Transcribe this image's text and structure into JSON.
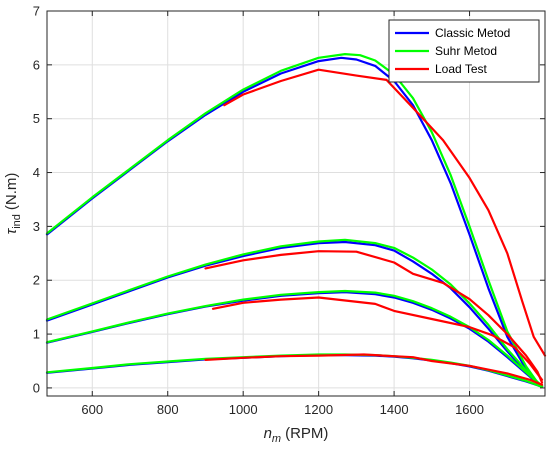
{
  "chart_data": {
    "type": "line",
    "title": "",
    "xlabel": {
      "main": "n",
      "sub": "m",
      "unit": "(RPM)"
    },
    "ylabel": {
      "main": "τ",
      "sub": "ind",
      "unit": "(N.m)"
    },
    "xlim": [
      480,
      1800
    ],
    "ylim": [
      -0.15,
      7
    ],
    "x_ticks": [
      600,
      800,
      1000,
      1200,
      1400,
      1600
    ],
    "y_ticks": [
      0,
      1,
      2,
      3,
      4,
      5,
      6,
      7
    ],
    "grid": true,
    "legend_position": "top-right",
    "legend": [
      {
        "name": "Classic Metod",
        "color": "#0000ff"
      },
      {
        "name": "Suhr Metod",
        "color": "#00ff00"
      },
      {
        "name": "Load Test",
        "color": "#ff0000"
      }
    ],
    "series": [
      {
        "name": "Classic Metod",
        "group": "curve 1",
        "color": "#0000ff",
        "points": [
          [
            480,
            2.85
          ],
          [
            600,
            3.52
          ],
          [
            700,
            4.05
          ],
          [
            800,
            4.58
          ],
          [
            900,
            5.07
          ],
          [
            1000,
            5.5
          ],
          [
            1100,
            5.84
          ],
          [
            1200,
            6.07
          ],
          [
            1260,
            6.13
          ],
          [
            1300,
            6.1
          ],
          [
            1350,
            5.98
          ],
          [
            1400,
            5.7
          ],
          [
            1450,
            5.25
          ],
          [
            1500,
            4.6
          ],
          [
            1550,
            3.8
          ],
          [
            1600,
            2.85
          ],
          [
            1650,
            1.85
          ],
          [
            1700,
            0.95
          ],
          [
            1750,
            0.35
          ],
          [
            1780,
            0.08
          ],
          [
            1792,
            0.03
          ]
        ]
      },
      {
        "name": "Suhr Metod",
        "group": "curve 1",
        "color": "#00ff00",
        "points": [
          [
            480,
            2.87
          ],
          [
            600,
            3.54
          ],
          [
            700,
            4.07
          ],
          [
            800,
            4.6
          ],
          [
            900,
            5.1
          ],
          [
            1000,
            5.54
          ],
          [
            1100,
            5.89
          ],
          [
            1200,
            6.13
          ],
          [
            1270,
            6.2
          ],
          [
            1310,
            6.18
          ],
          [
            1350,
            6.08
          ],
          [
            1400,
            5.82
          ],
          [
            1450,
            5.38
          ],
          [
            1500,
            4.75
          ],
          [
            1550,
            3.95
          ],
          [
            1600,
            3.0
          ],
          [
            1650,
            2.0
          ],
          [
            1700,
            1.05
          ],
          [
            1750,
            0.4
          ],
          [
            1780,
            0.1
          ],
          [
            1792,
            0.03
          ]
        ]
      },
      {
        "name": "Load Test",
        "group": "curve 1",
        "color": "#ff0000",
        "points": [
          [
            950,
            5.25
          ],
          [
            1000,
            5.45
          ],
          [
            1100,
            5.7
          ],
          [
            1200,
            5.91
          ],
          [
            1300,
            5.8
          ],
          [
            1380,
            5.72
          ],
          [
            1450,
            5.2
          ],
          [
            1530,
            4.6
          ],
          [
            1600,
            3.9
          ],
          [
            1650,
            3.3
          ],
          [
            1700,
            2.5
          ],
          [
            1740,
            1.6
          ],
          [
            1770,
            0.95
          ],
          [
            1800,
            0.6
          ]
        ]
      },
      {
        "name": "Classic Metod",
        "group": "curve 2",
        "color": "#0000ff",
        "points": [
          [
            480,
            1.25
          ],
          [
            600,
            1.55
          ],
          [
            700,
            1.8
          ],
          [
            800,
            2.05
          ],
          [
            900,
            2.27
          ],
          [
            1000,
            2.45
          ],
          [
            1100,
            2.6
          ],
          [
            1200,
            2.69
          ],
          [
            1270,
            2.71
          ],
          [
            1350,
            2.65
          ],
          [
            1400,
            2.55
          ],
          [
            1450,
            2.35
          ],
          [
            1500,
            2.12
          ],
          [
            1550,
            1.85
          ],
          [
            1600,
            1.5
          ],
          [
            1650,
            1.1
          ],
          [
            1700,
            0.68
          ],
          [
            1750,
            0.3
          ],
          [
            1780,
            0.1
          ],
          [
            1792,
            0.04
          ]
        ]
      },
      {
        "name": "Suhr Metod",
        "group": "curve 2",
        "color": "#00ff00",
        "points": [
          [
            480,
            1.27
          ],
          [
            600,
            1.57
          ],
          [
            700,
            1.82
          ],
          [
            800,
            2.07
          ],
          [
            900,
            2.29
          ],
          [
            1000,
            2.48
          ],
          [
            1100,
            2.63
          ],
          [
            1200,
            2.72
          ],
          [
            1270,
            2.75
          ],
          [
            1350,
            2.69
          ],
          [
            1400,
            2.6
          ],
          [
            1450,
            2.42
          ],
          [
            1500,
            2.2
          ],
          [
            1550,
            1.92
          ],
          [
            1600,
            1.57
          ],
          [
            1650,
            1.17
          ],
          [
            1700,
            0.72
          ],
          [
            1750,
            0.33
          ],
          [
            1780,
            0.11
          ],
          [
            1792,
            0.04
          ]
        ]
      },
      {
        "name": "Load Test",
        "group": "curve 2",
        "color": "#ff0000",
        "points": [
          [
            900,
            2.22
          ],
          [
            1000,
            2.37
          ],
          [
            1100,
            2.47
          ],
          [
            1200,
            2.54
          ],
          [
            1300,
            2.53
          ],
          [
            1400,
            2.33
          ],
          [
            1450,
            2.12
          ],
          [
            1530,
            1.95
          ],
          [
            1600,
            1.65
          ],
          [
            1650,
            1.35
          ],
          [
            1700,
            1.0
          ],
          [
            1750,
            0.6
          ],
          [
            1780,
            0.3
          ],
          [
            1792,
            0.1
          ]
        ]
      },
      {
        "name": "Classic Metod",
        "group": "curve 3",
        "color": "#0000ff",
        "points": [
          [
            480,
            0.84
          ],
          [
            600,
            1.04
          ],
          [
            700,
            1.21
          ],
          [
            800,
            1.37
          ],
          [
            900,
            1.51
          ],
          [
            1000,
            1.62
          ],
          [
            1100,
            1.71
          ],
          [
            1200,
            1.76
          ],
          [
            1270,
            1.78
          ],
          [
            1350,
            1.74
          ],
          [
            1400,
            1.68
          ],
          [
            1450,
            1.58
          ],
          [
            1500,
            1.45
          ],
          [
            1550,
            1.29
          ],
          [
            1600,
            1.1
          ],
          [
            1650,
            0.86
          ],
          [
            1700,
            0.57
          ],
          [
            1750,
            0.27
          ],
          [
            1780,
            0.09
          ],
          [
            1792,
            0.03
          ]
        ]
      },
      {
        "name": "Suhr Metod",
        "group": "curve 3",
        "color": "#00ff00",
        "points": [
          [
            480,
            0.85
          ],
          [
            600,
            1.05
          ],
          [
            700,
            1.22
          ],
          [
            800,
            1.38
          ],
          [
            900,
            1.52
          ],
          [
            1000,
            1.64
          ],
          [
            1100,
            1.73
          ],
          [
            1200,
            1.78
          ],
          [
            1270,
            1.8
          ],
          [
            1350,
            1.77
          ],
          [
            1400,
            1.71
          ],
          [
            1450,
            1.61
          ],
          [
            1500,
            1.48
          ],
          [
            1550,
            1.32
          ],
          [
            1600,
            1.13
          ],
          [
            1650,
            0.89
          ],
          [
            1700,
            0.6
          ],
          [
            1750,
            0.29
          ],
          [
            1780,
            0.1
          ],
          [
            1792,
            0.03
          ]
        ]
      },
      {
        "name": "Load Test",
        "group": "curve 3",
        "color": "#ff0000",
        "points": [
          [
            920,
            1.47
          ],
          [
            1000,
            1.58
          ],
          [
            1100,
            1.64
          ],
          [
            1200,
            1.68
          ],
          [
            1350,
            1.56
          ],
          [
            1400,
            1.43
          ],
          [
            1500,
            1.28
          ],
          [
            1600,
            1.13
          ],
          [
            1660,
            0.98
          ],
          [
            1720,
            0.75
          ],
          [
            1760,
            0.45
          ],
          [
            1792,
            0.15
          ]
        ]
      },
      {
        "name": "Classic Metod",
        "group": "curve 4",
        "color": "#0000ff",
        "points": [
          [
            480,
            0.28
          ],
          [
            600,
            0.36
          ],
          [
            700,
            0.43
          ],
          [
            800,
            0.48
          ],
          [
            900,
            0.53
          ],
          [
            1000,
            0.56
          ],
          [
            1100,
            0.59
          ],
          [
            1200,
            0.61
          ],
          [
            1270,
            0.61
          ],
          [
            1350,
            0.6
          ],
          [
            1400,
            0.58
          ],
          [
            1450,
            0.55
          ],
          [
            1500,
            0.51
          ],
          [
            1550,
            0.46
          ],
          [
            1600,
            0.4
          ],
          [
            1650,
            0.32
          ],
          [
            1700,
            0.22
          ],
          [
            1750,
            0.12
          ],
          [
            1780,
            0.05
          ],
          [
            1792,
            0.02
          ]
        ]
      },
      {
        "name": "Suhr Metod",
        "group": "curve 4",
        "color": "#00ff00",
        "points": [
          [
            480,
            0.29
          ],
          [
            600,
            0.37
          ],
          [
            700,
            0.44
          ],
          [
            800,
            0.49
          ],
          [
            900,
            0.54
          ],
          [
            1000,
            0.57
          ],
          [
            1100,
            0.6
          ],
          [
            1200,
            0.62
          ],
          [
            1270,
            0.62
          ],
          [
            1350,
            0.61
          ],
          [
            1400,
            0.59
          ],
          [
            1450,
            0.56
          ],
          [
            1500,
            0.52
          ],
          [
            1550,
            0.47
          ],
          [
            1600,
            0.41
          ],
          [
            1650,
            0.33
          ],
          [
            1700,
            0.23
          ],
          [
            1750,
            0.13
          ],
          [
            1780,
            0.05
          ],
          [
            1792,
            0.02
          ]
        ]
      },
      {
        "name": "Load Test",
        "group": "curve 4",
        "color": "#ff0000",
        "points": [
          [
            900,
            0.52
          ],
          [
            1000,
            0.56
          ],
          [
            1100,
            0.59
          ],
          [
            1200,
            0.6
          ],
          [
            1320,
            0.62
          ],
          [
            1400,
            0.59
          ],
          [
            1450,
            0.57
          ],
          [
            1500,
            0.5
          ],
          [
            1600,
            0.41
          ],
          [
            1700,
            0.27
          ],
          [
            1760,
            0.15
          ],
          [
            1792,
            0.06
          ]
        ]
      }
    ]
  }
}
